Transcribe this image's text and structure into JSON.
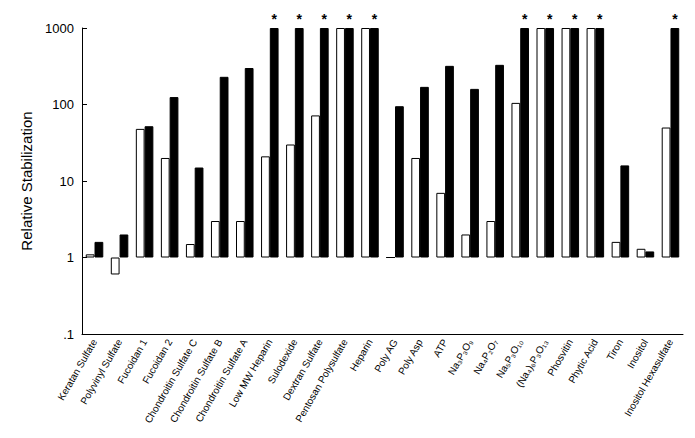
{
  "chart_data": {
    "type": "bar",
    "ylabel": "Relative Stabilization",
    "log": "y",
    "grid": false,
    "categories": [
      "Keratan Sulfate",
      "Polyvinyl Sulfate",
      "Fucoidan 1",
      "Fucoidan 2",
      "Chondroitin Sulfate C",
      "Chondroitin Sulfate B",
      "Chondroitin Sulfate A",
      "Low MW Heparin",
      "Sulodexide",
      "Dextran Sulfate",
      "Pentosan Polysulfate",
      "Heparin",
      "Poly AG",
      "Poly Asp",
      "ATP",
      "Na₃P₃O₉",
      "Na₄P₂O₇",
      "Na₅P₃O₁₀",
      "(Na₄)₆P₃O₁₃",
      "Phosvitin",
      "Phytic Acid",
      "Tiron",
      "Inositol",
      "Inositol Hexasulfate"
    ],
    "series": [
      {
        "color": "#ffffff",
        "values": [
          1.1,
          0.6,
          48,
          20,
          1.5,
          3,
          3,
          21,
          30,
          72,
          1000,
          1000,
          1.0,
          20,
          7,
          2,
          3,
          105,
          1000,
          1000,
          1000,
          1.6,
          1.3,
          50
        ]
      },
      {
        "color": "#000000",
        "values": [
          1.6,
          2.0,
          52,
          125,
          15,
          230,
          300,
          1000,
          1000,
          1000,
          1000,
          1000,
          95,
          170,
          320,
          160,
          330,
          1000,
          1000,
          1000,
          1000,
          16,
          1.2,
          1000
        ],
        "annotations": [
          null,
          null,
          null,
          null,
          null,
          null,
          null,
          "*",
          "*",
          "*",
          "*",
          "*",
          null,
          null,
          null,
          null,
          null,
          "*",
          "*",
          "*",
          "*",
          null,
          null,
          "*"
        ]
      }
    ],
    "ylim": [
      0.1,
      1000
    ],
    "yticks": [
      {
        "value": 0.1,
        "label": ".1"
      },
      1,
      10,
      100,
      1000
    ]
  }
}
